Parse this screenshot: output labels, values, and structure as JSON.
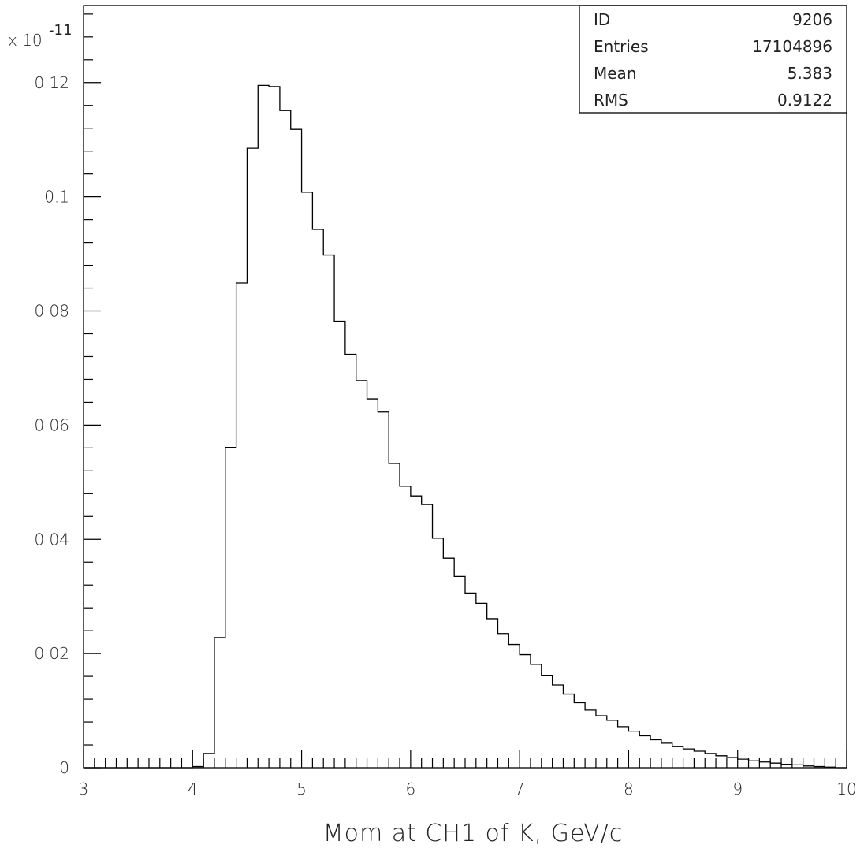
{
  "chart_data": {
    "type": "histogram",
    "xlabel": "Mom at CH1 of K,  GeV/c",
    "ylabel": "",
    "y_scale_label": "x 10",
    "y_scale_exponent": "-11",
    "xlim": [
      3,
      10
    ],
    "ylim": [
      0,
      0.1335
    ],
    "x_ticks": [
      "3",
      "4",
      "5",
      "6",
      "7",
      "8",
      "9",
      "10"
    ],
    "y_ticks": [
      "0",
      "0.02",
      "0.04",
      "0.06",
      "0.08",
      "0.1",
      "0.12"
    ],
    "bin_edges_start": 3.0,
    "bin_width": 0.1,
    "values": [
      0,
      0,
      0,
      0,
      0,
      0,
      0,
      0,
      0,
      0,
      0.0002,
      0.0025,
      0.0228,
      0.0561,
      0.0849,
      0.1085,
      0.1195,
      0.1193,
      0.1151,
      0.1118,
      0.1008,
      0.0943,
      0.0898,
      0.0782,
      0.0724,
      0.0678,
      0.0646,
      0.0623,
      0.0533,
      0.0493,
      0.0476,
      0.0461,
      0.0402,
      0.0367,
      0.0335,
      0.0306,
      0.0288,
      0.0261,
      0.0235,
      0.0216,
      0.0198,
      0.0181,
      0.0161,
      0.0145,
      0.0129,
      0.0114,
      0.0101,
      0.0091,
      0.0083,
      0.0072,
      0.0064,
      0.0056,
      0.0049,
      0.0043,
      0.0037,
      0.0033,
      0.0029,
      0.0025,
      0.0021,
      0.0018,
      0.0015,
      0.0012,
      0.001,
      0.0008,
      0.0006,
      0.0005,
      0.0003,
      0.0002,
      0.0001,
      0
    ],
    "grid": false
  },
  "stats_box": {
    "rows": [
      {
        "label": "ID",
        "value": "9206"
      },
      {
        "label": "Entries",
        "value": "17104896"
      },
      {
        "label": "Mean",
        "value": "5.383"
      },
      {
        "label": "RMS",
        "value": "0.9122"
      }
    ]
  }
}
